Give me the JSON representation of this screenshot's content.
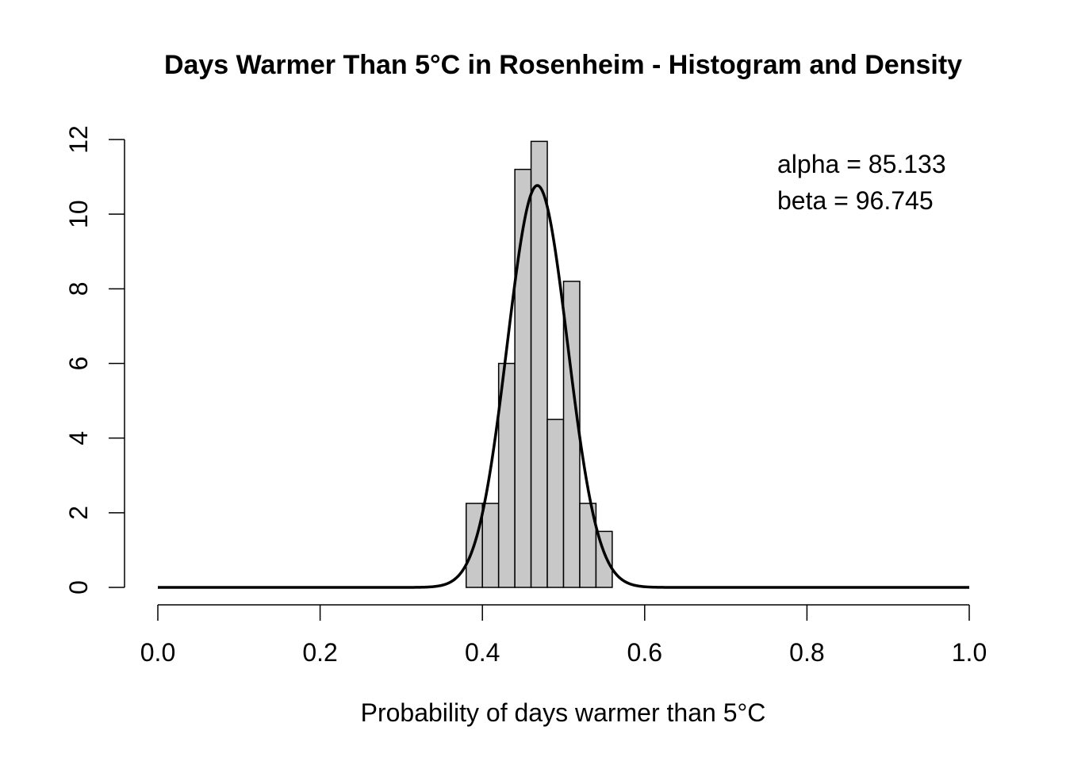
{
  "chart_data": {
    "type": "bar",
    "subtype": "histogram-with-density",
    "title": "Days Warmer Than 5°C in Rosenheim - Histogram and Density",
    "xlabel": "Probability of days warmer than 5°C",
    "ylabel": "",
    "xlim": [
      0,
      1
    ],
    "ylim": [
      0,
      12
    ],
    "x_ticks": [
      "0.0",
      "0.2",
      "0.4",
      "0.6",
      "0.8",
      "1.0"
    ],
    "y_ticks": [
      "0",
      "2",
      "4",
      "6",
      "8",
      "10",
      "12"
    ],
    "bins": [
      {
        "start": 0.38,
        "end": 0.4,
        "density": 2.25
      },
      {
        "start": 0.4,
        "end": 0.42,
        "density": 2.25
      },
      {
        "start": 0.42,
        "end": 0.44,
        "density": 6.0
      },
      {
        "start": 0.44,
        "end": 0.46,
        "density": 11.2
      },
      {
        "start": 0.46,
        "end": 0.48,
        "density": 11.95
      },
      {
        "start": 0.48,
        "end": 0.5,
        "density": 4.5
      },
      {
        "start": 0.5,
        "end": 0.52,
        "density": 8.2
      },
      {
        "start": 0.52,
        "end": 0.54,
        "density": 2.25
      },
      {
        "start": 0.54,
        "end": 0.56,
        "density": 1.5
      }
    ],
    "density_curve": {
      "distribution": "beta",
      "alpha": 85.133,
      "beta": 96.745
    },
    "bar_color": "#c8c8c8",
    "line_color": "#000000",
    "annotations": [
      "alpha =  85.133",
      "beta =  96.745"
    ],
    "grid": false,
    "legend": "none"
  }
}
